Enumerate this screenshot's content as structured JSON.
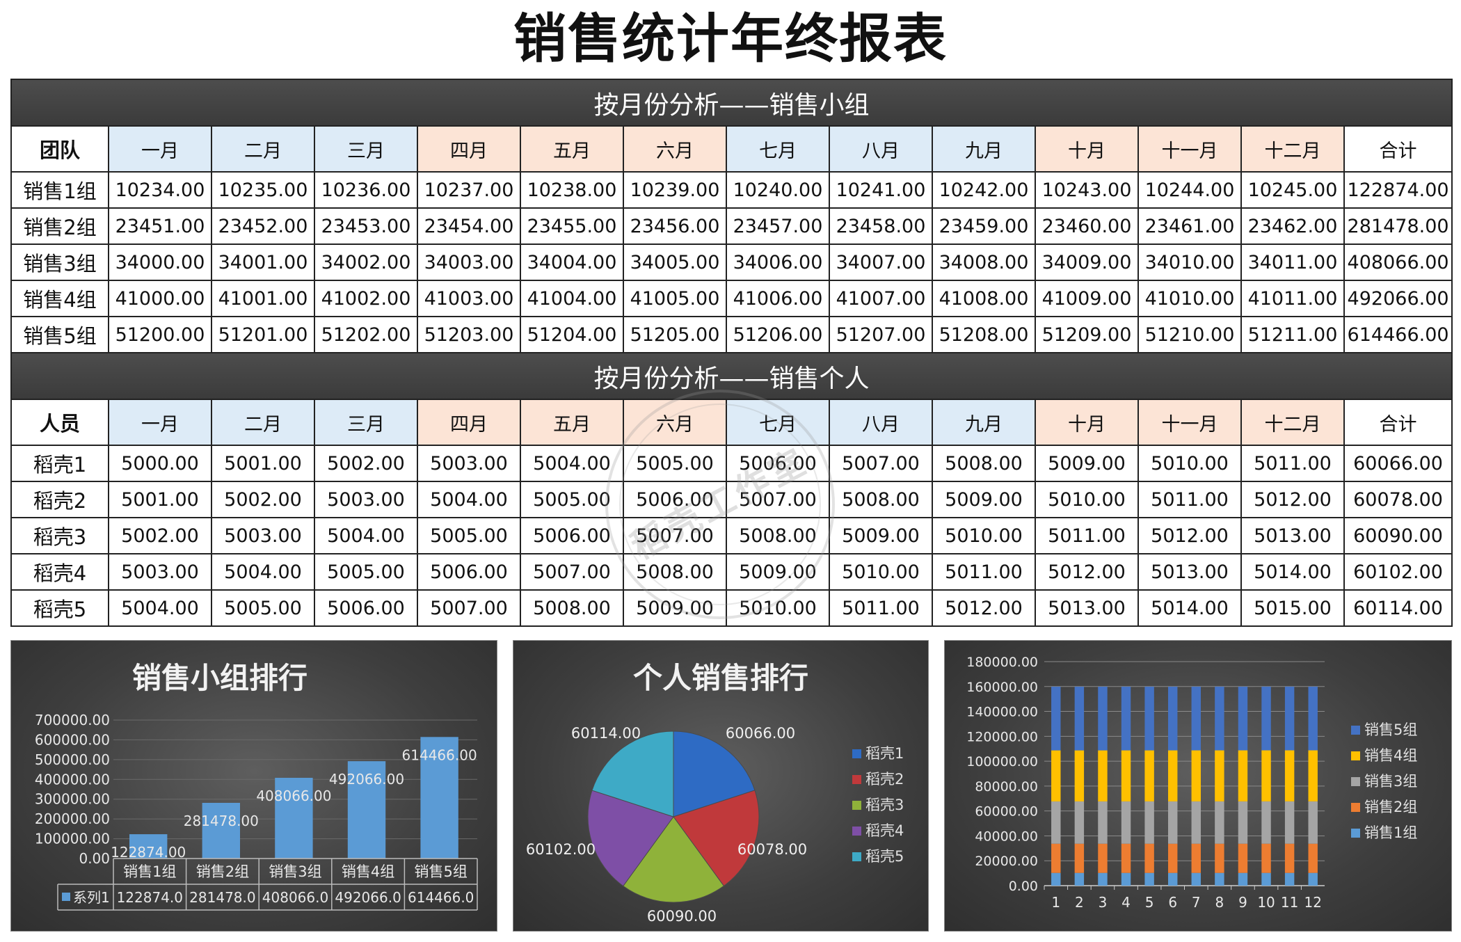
{
  "title": "销售统计年终报表",
  "months": [
    "一月",
    "二月",
    "三月",
    "四月",
    "五月",
    "六月",
    "七月",
    "八月",
    "九月",
    "十月",
    "十一月",
    "十二月"
  ],
  "total_label": "合计",
  "team_table": {
    "banner": "按月份分析——销售小组",
    "corner": "团队",
    "rows": [
      {
        "name": "销售1组",
        "values": [
          "10234.00",
          "10235.00",
          "10236.00",
          "10237.00",
          "10238.00",
          "10239.00",
          "10240.00",
          "10241.00",
          "10242.00",
          "10243.00",
          "10244.00",
          "10245.00"
        ],
        "total": "122874.00"
      },
      {
        "name": "销售2组",
        "values": [
          "23451.00",
          "23452.00",
          "23453.00",
          "23454.00",
          "23455.00",
          "23456.00",
          "23457.00",
          "23458.00",
          "23459.00",
          "23460.00",
          "23461.00",
          "23462.00"
        ],
        "total": "281478.00"
      },
      {
        "name": "销售3组",
        "values": [
          "34000.00",
          "34001.00",
          "34002.00",
          "34003.00",
          "34004.00",
          "34005.00",
          "34006.00",
          "34007.00",
          "34008.00",
          "34009.00",
          "34010.00",
          "34011.00"
        ],
        "total": "408066.00"
      },
      {
        "name": "销售4组",
        "values": [
          "41000.00",
          "41001.00",
          "41002.00",
          "41003.00",
          "41004.00",
          "41005.00",
          "41006.00",
          "41007.00",
          "41008.00",
          "41009.00",
          "41010.00",
          "41011.00"
        ],
        "total": "492066.00"
      },
      {
        "name": "销售5组",
        "values": [
          "51200.00",
          "51201.00",
          "51202.00",
          "51203.00",
          "51204.00",
          "51205.00",
          "51206.00",
          "51207.00",
          "51208.00",
          "51209.00",
          "51210.00",
          "51211.00"
        ],
        "total": "614466.00"
      }
    ]
  },
  "person_table": {
    "banner": "按月份分析——销售个人",
    "corner": "人员",
    "rows": [
      {
        "name": "稻壳1",
        "values": [
          "5000.00",
          "5001.00",
          "5002.00",
          "5003.00",
          "5004.00",
          "5005.00",
          "5006.00",
          "5007.00",
          "5008.00",
          "5009.00",
          "5010.00",
          "5011.00"
        ],
        "total": "60066.00"
      },
      {
        "name": "稻壳2",
        "values": [
          "5001.00",
          "5002.00",
          "5003.00",
          "5004.00",
          "5005.00",
          "5006.00",
          "5007.00",
          "5008.00",
          "5009.00",
          "5010.00",
          "5011.00",
          "5012.00"
        ],
        "total": "60078.00"
      },
      {
        "name": "稻壳3",
        "values": [
          "5002.00",
          "5003.00",
          "5004.00",
          "5005.00",
          "5006.00",
          "5007.00",
          "5008.00",
          "5009.00",
          "5010.00",
          "5011.00",
          "5012.00",
          "5013.00"
        ],
        "total": "60090.00"
      },
      {
        "name": "稻壳4",
        "values": [
          "5003.00",
          "5004.00",
          "5005.00",
          "5006.00",
          "5007.00",
          "5008.00",
          "5009.00",
          "5010.00",
          "5011.00",
          "5012.00",
          "5013.00",
          "5014.00"
        ],
        "total": "60102.00"
      },
      {
        "name": "稻壳5",
        "values": [
          "5004.00",
          "5005.00",
          "5006.00",
          "5007.00",
          "5008.00",
          "5009.00",
          "5010.00",
          "5011.00",
          "5012.00",
          "5013.00",
          "5014.00",
          "5015.00"
        ],
        "total": "60114.00"
      }
    ]
  },
  "month_colors": [
    "#ddebf7",
    "#ddebf7",
    "#ddebf7",
    "#fce4d6",
    "#fce4d6",
    "#fce4d6",
    "#ddebf7",
    "#ddebf7",
    "#ddebf7",
    "#fce4d6",
    "#fce4d6",
    "#fce4d6"
  ],
  "watermark": "稻壳工作室",
  "chart_data": [
    {
      "type": "bar",
      "title": "销售小组排行",
      "categories": [
        "销售1组",
        "销售2组",
        "销售3组",
        "销售4组",
        "销售5组"
      ],
      "series": [
        {
          "name": "系列1",
          "values": [
            122874,
            281478,
            408066,
            492066,
            614466
          ]
        }
      ],
      "data_labels": [
        "122874.00",
        "281478.00",
        "408066.00",
        "492066.00",
        "614466.00"
      ],
      "table_values": [
        "122874.0",
        "281478.0",
        "408066.0",
        "492066.0",
        "614466.0"
      ],
      "y_ticks": [
        "700000.00",
        "600000.00",
        "500000.00",
        "400000.00",
        "300000.00",
        "200000.00",
        "100000.00",
        "0.00"
      ],
      "ylim": [
        0,
        700000
      ],
      "color": "#5b9bd5"
    },
    {
      "type": "pie",
      "title": "个人销售排行",
      "labels": [
        "稻壳1",
        "稻壳2",
        "稻壳3",
        "稻壳4",
        "稻壳5"
      ],
      "values": [
        60066,
        60078,
        60090,
        60102,
        60114
      ],
      "data_labels": [
        "60066.00",
        "60078.00",
        "60090.00",
        "60102.00",
        "60114.00"
      ],
      "colors": [
        "#2e6bc4",
        "#c0393b",
        "#8fb23a",
        "#7e4fa6",
        "#3eaac6"
      ],
      "legend": "right"
    },
    {
      "type": "bar",
      "stacked": true,
      "categories": [
        "1",
        "2",
        "3",
        "4",
        "5",
        "6",
        "7",
        "8",
        "9",
        "10",
        "11",
        "12"
      ],
      "series": [
        {
          "name": "销售1组",
          "values": [
            10234,
            10235,
            10236,
            10237,
            10238,
            10239,
            10240,
            10241,
            10242,
            10243,
            10244,
            10245
          ],
          "color": "#5b9bd5"
        },
        {
          "name": "销售2组",
          "values": [
            23451,
            23452,
            23453,
            23454,
            23455,
            23456,
            23457,
            23458,
            23459,
            23460,
            23461,
            23462
          ],
          "color": "#ed7d31"
        },
        {
          "name": "销售3组",
          "values": [
            34000,
            34001,
            34002,
            34003,
            34004,
            34005,
            34006,
            34007,
            34008,
            34009,
            34010,
            34011
          ],
          "color": "#a5a5a5"
        },
        {
          "name": "销售4组",
          "values": [
            41000,
            41001,
            41002,
            41003,
            41004,
            41005,
            41006,
            41007,
            41008,
            41009,
            41010,
            41011
          ],
          "color": "#ffc000"
        },
        {
          "name": "销售5组",
          "values": [
            51200,
            51201,
            51202,
            51203,
            51204,
            51205,
            51206,
            51207,
            51208,
            51209,
            51210,
            51211
          ],
          "color": "#4472c4"
        }
      ],
      "y_ticks": [
        "180000.00",
        "160000.00",
        "140000.00",
        "120000.00",
        "100000.00",
        "80000.00",
        "60000.00",
        "40000.00",
        "20000.00",
        "0.00"
      ],
      "ylim": [
        0,
        180000
      ],
      "legend": "right"
    }
  ]
}
